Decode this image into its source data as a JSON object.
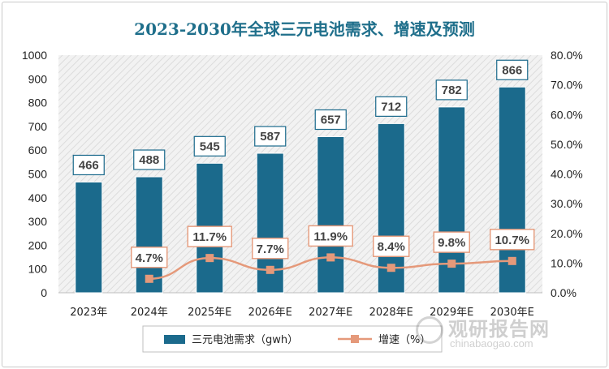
{
  "chart_data": {
    "type": "bar",
    "title": "2023-2030年全球三元电池需求、增速及预测",
    "categories": [
      "2023年",
      "2024年",
      "2025年E",
      "2026年E",
      "2027年E",
      "2028年E",
      "2029年E",
      "2030年E"
    ],
    "series": [
      {
        "name": "三元电池需求（gwh）",
        "type": "bar",
        "axis": "left",
        "values": [
          466,
          488,
          545,
          587,
          657,
          712,
          782,
          866
        ],
        "labels": [
          "466",
          "488",
          "545",
          "587",
          "657",
          "712",
          "782",
          "866"
        ]
      },
      {
        "name": "增速（%）",
        "type": "line",
        "axis": "right",
        "values": [
          null,
          4.7,
          11.7,
          7.7,
          11.9,
          8.4,
          9.8,
          10.7
        ],
        "labels": [
          "",
          "4.7%",
          "11.7%",
          "7.7%",
          "11.9%",
          "8.4%",
          "9.8%",
          "10.7%"
        ]
      }
    ],
    "ylim": [
      0,
      1000
    ],
    "y2lim": [
      0,
      80
    ],
    "yticks": [
      "0",
      "100",
      "200",
      "300",
      "400",
      "500",
      "600",
      "700",
      "800",
      "900",
      "1000"
    ],
    "y2ticks": [
      "0.0%",
      "10.0%",
      "20.0%",
      "30.0%",
      "40.0%",
      "50.0%",
      "60.0%",
      "70.0%",
      "80.0%"
    ],
    "grid": false,
    "legend": "bottom",
    "colors": {
      "bar": "#1b6a8c",
      "line": "#e5997a",
      "title": "#1f6f8b",
      "label_border": "#1b6a8c",
      "rate_border": "#e5997a"
    }
  },
  "watermark": {
    "cn": "观研报告网",
    "en": "chinabaogao.com"
  }
}
